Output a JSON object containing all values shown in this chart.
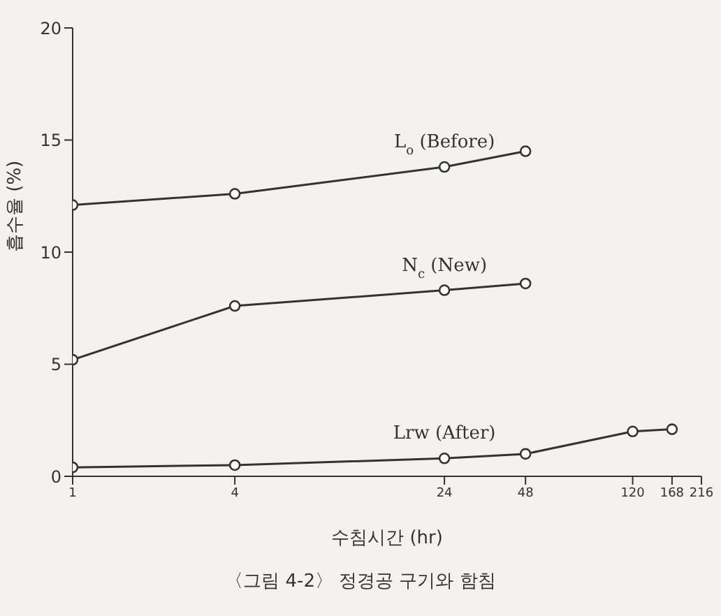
{
  "chart_data": {
    "type": "line",
    "ylabel": "흡수율 (%)",
    "xlabel": "수침시간 (hr)",
    "annotations": [
      "〈그림 4-2〉 정경공 구기와 함침"
    ],
    "log": "x",
    "xlim": [
      1,
      216
    ],
    "xticks": [
      1,
      4,
      24,
      48,
      120,
      168,
      216
    ],
    "ylim": [
      0,
      20
    ],
    "yticks": [
      0,
      5,
      10,
      15,
      20
    ],
    "grid": false,
    "legend": false,
    "marker": "circle",
    "line_style": "solid",
    "series": [
      {
        "name": "L$_{o}$ (Before)",
        "color": "#333333",
        "x": [
          1,
          4,
          24,
          48
        ],
        "values": [
          12.1,
          12.6,
          13.8,
          14.5
        ]
      },
      {
        "name": "N$_{c}$ (New)",
        "color": "#333333",
        "x": [
          1,
          4,
          24,
          48
        ],
        "values": [
          5.2,
          7.6,
          8.3,
          8.6
        ]
      },
      {
        "name": "Lrw (After)",
        "color": "#333333",
        "x": [
          1,
          4,
          24,
          48,
          120,
          168
        ],
        "values": [
          0.4,
          0.5,
          0.8,
          1.0,
          2.0,
          2.1
        ]
      }
    ]
  }
}
